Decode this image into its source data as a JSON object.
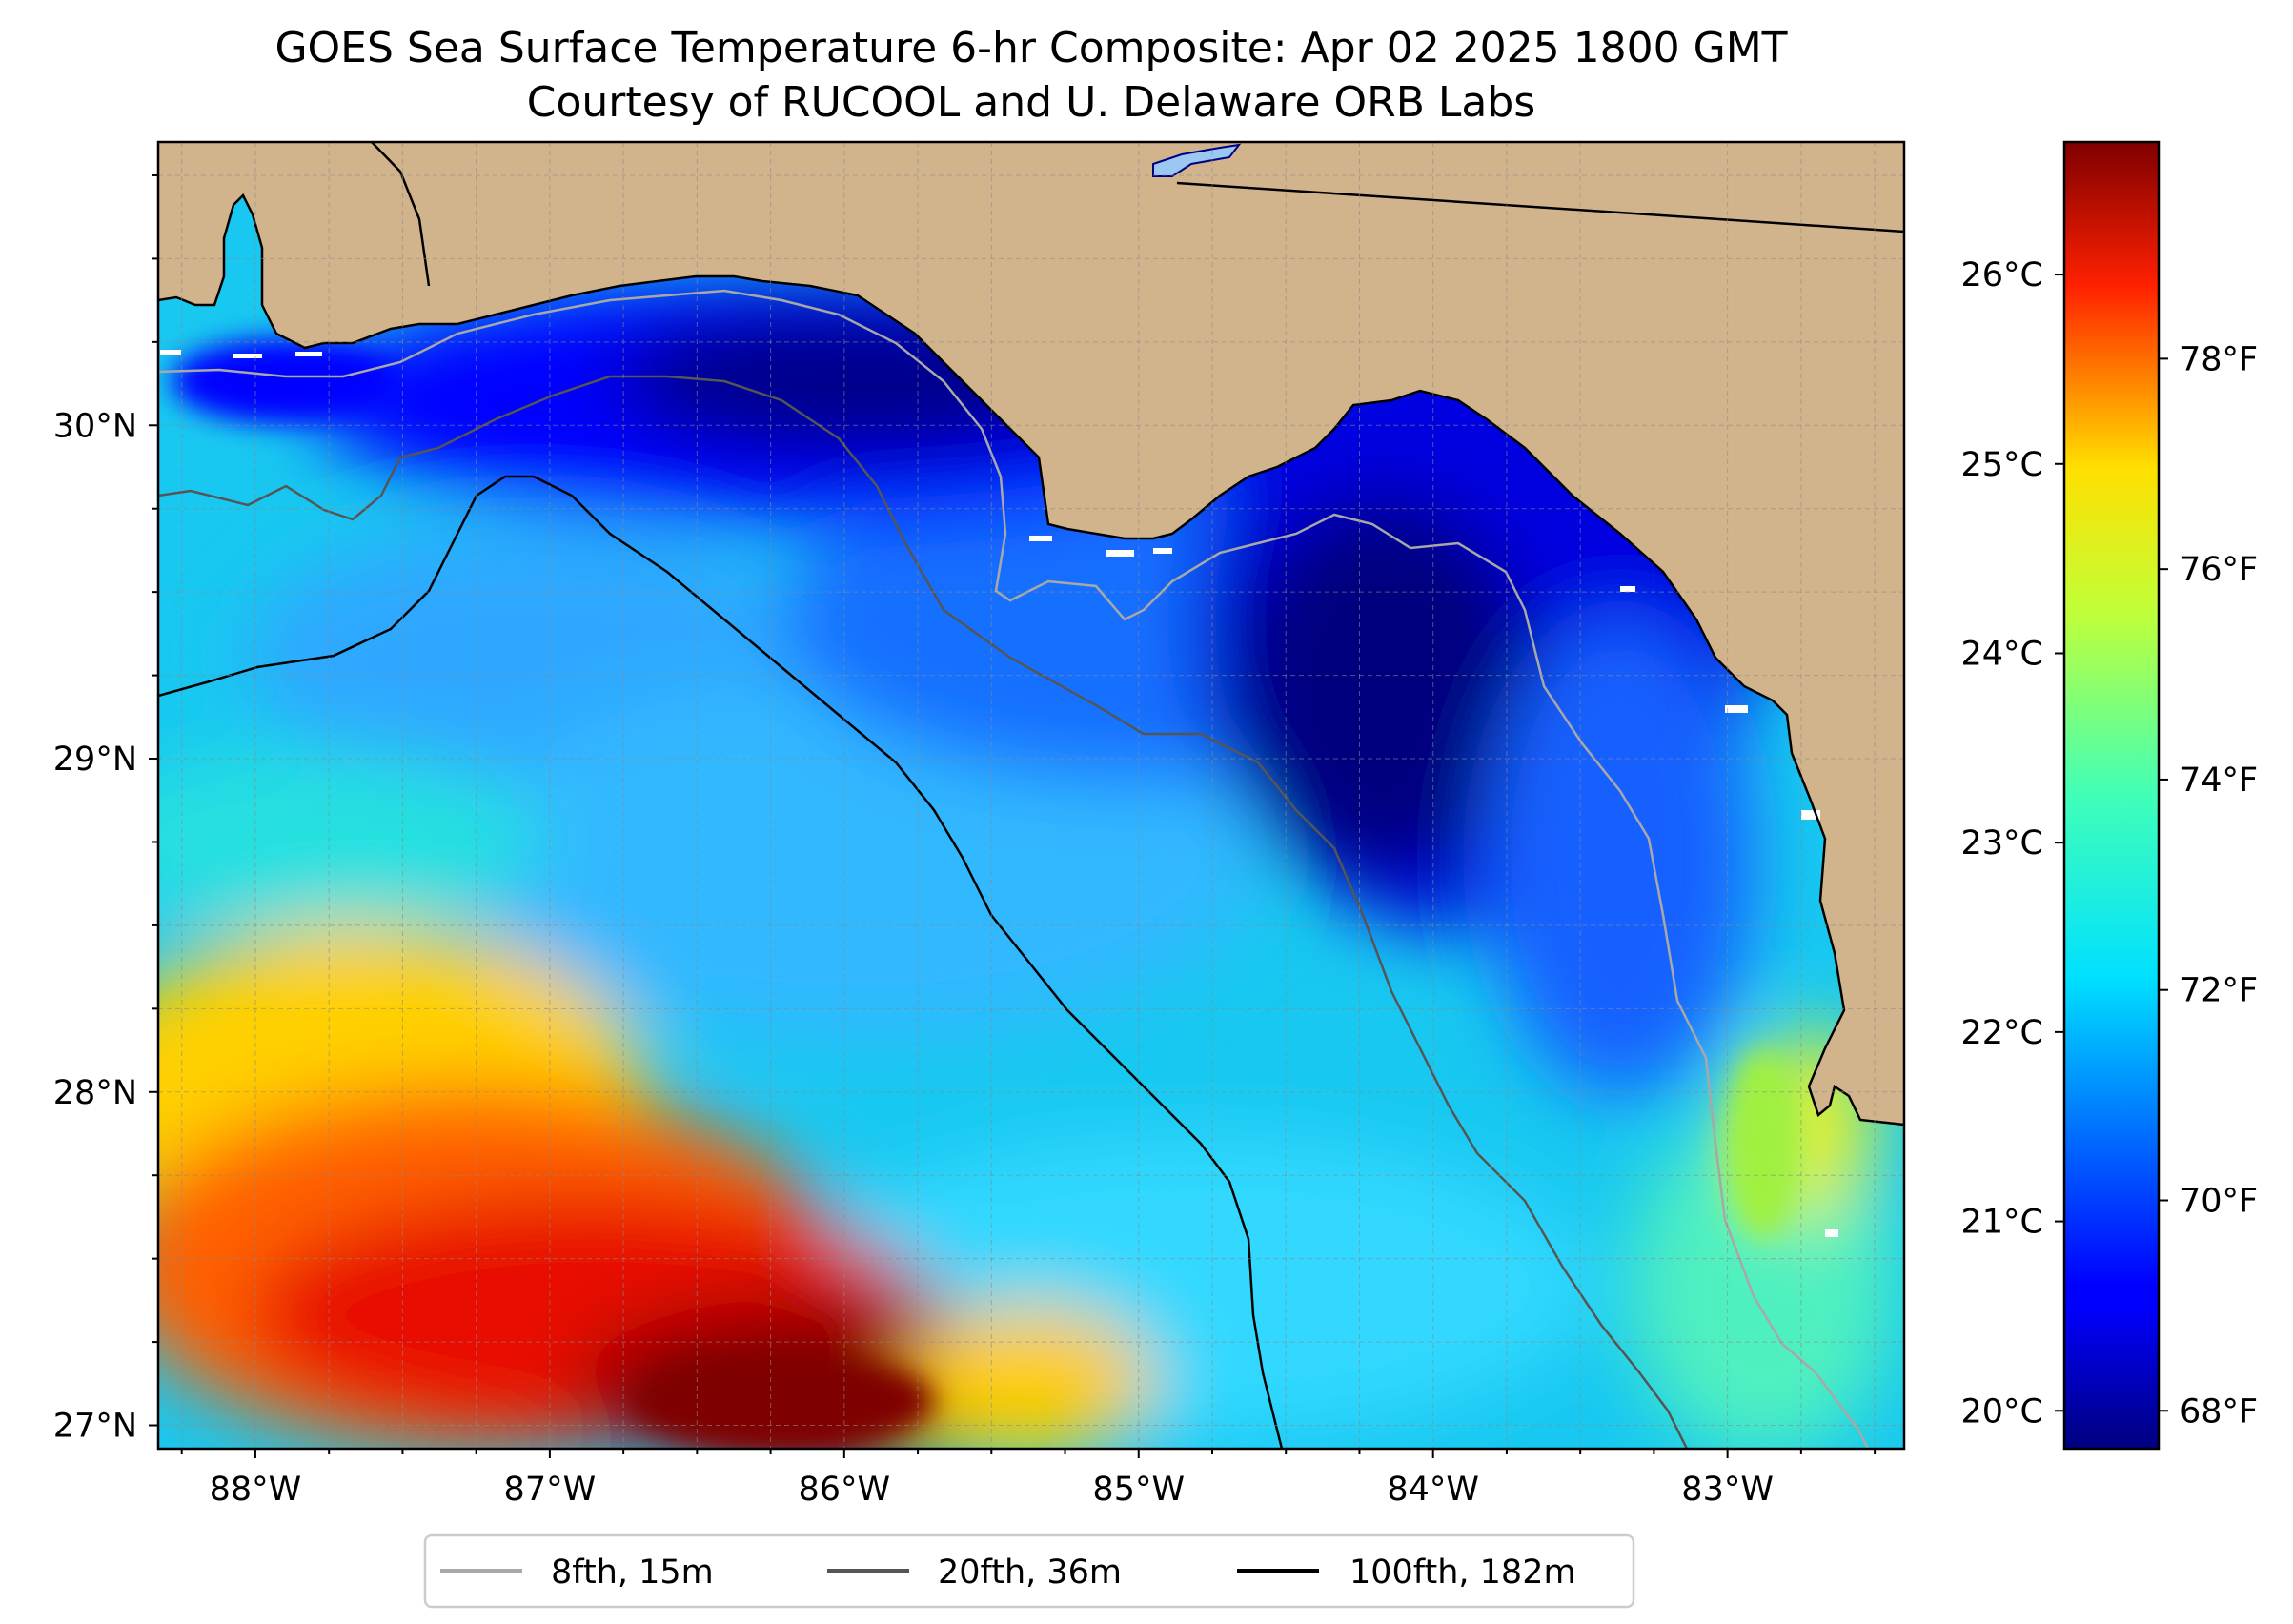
{
  "title": {
    "line1": "GOES Sea Surface Temperature 6-hr Composite: Apr 02 2025 1800 GMT",
    "line2": "Courtesy of RUCOOL and U. Delaware ORB Labs"
  },
  "map": {
    "lon_range": [
      -88.33,
      -82.4
    ],
    "lat_range": [
      26.93,
      30.85
    ],
    "lon_ticks": [
      {
        "value": -88,
        "label": "88°W"
      },
      {
        "value": -87,
        "label": "87°W"
      },
      {
        "value": -86,
        "label": "86°W"
      },
      {
        "value": -85,
        "label": "85°W"
      },
      {
        "value": -84,
        "label": "84°W"
      },
      {
        "value": -83,
        "label": "83°W"
      }
    ],
    "lat_ticks": [
      {
        "value": 27,
        "label": "27°N"
      },
      {
        "value": 28,
        "label": "28°N"
      },
      {
        "value": 29,
        "label": "29°N"
      },
      {
        "value": 30,
        "label": "30°N"
      }
    ],
    "colors": {
      "land": "#d2b48c",
      "coast": "#000000",
      "grid": "#8a8a8a",
      "isobath_8fth": "#a8a8a8",
      "isobath_20fth": "#555555",
      "isobath_100fth": "#000000"
    },
    "isobaths": [
      {
        "name": "8fth, 15m",
        "color": "#a8a8a8"
      },
      {
        "name": "20fth, 36m",
        "color": "#555555"
      },
      {
        "name": "100fth, 182m",
        "color": "#000000"
      }
    ]
  },
  "colorbar": {
    "range_c": [
      19.8,
      26.7
    ],
    "colormap": "jet",
    "celsius_ticks": [
      {
        "value": 20,
        "label": "20°C"
      },
      {
        "value": 21,
        "label": "21°C"
      },
      {
        "value": 22,
        "label": "22°C"
      },
      {
        "value": 23,
        "label": "23°C"
      },
      {
        "value": 24,
        "label": "24°C"
      },
      {
        "value": 25,
        "label": "25°C"
      },
      {
        "value": 26,
        "label": "26°C"
      }
    ],
    "fahrenheit_ticks": [
      {
        "value": 68,
        "label": "68°F"
      },
      {
        "value": 70,
        "label": "70°F"
      },
      {
        "value": 72,
        "label": "72°F"
      },
      {
        "value": 74,
        "label": "74°F"
      },
      {
        "value": 76,
        "label": "76°F"
      },
      {
        "value": 78,
        "label": "78°F"
      }
    ]
  },
  "legend": {
    "entries": [
      {
        "label": "8fth, 15m",
        "color": "#a8a8a8"
      },
      {
        "label": "20fth, 36m",
        "color": "#555555"
      },
      {
        "label": "100fth, 182m",
        "color": "#000000"
      }
    ]
  }
}
